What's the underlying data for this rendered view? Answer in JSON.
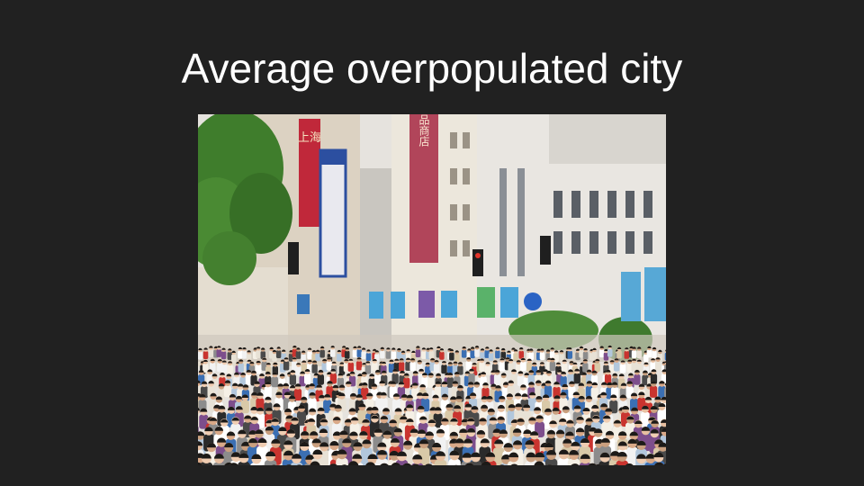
{
  "slide": {
    "title": "Average overpopulated city",
    "background_color": "#212121",
    "title_color": "#ffffff"
  },
  "photo": {
    "signs": {
      "tower_left": "上海",
      "tower_center": "食品商店"
    }
  }
}
